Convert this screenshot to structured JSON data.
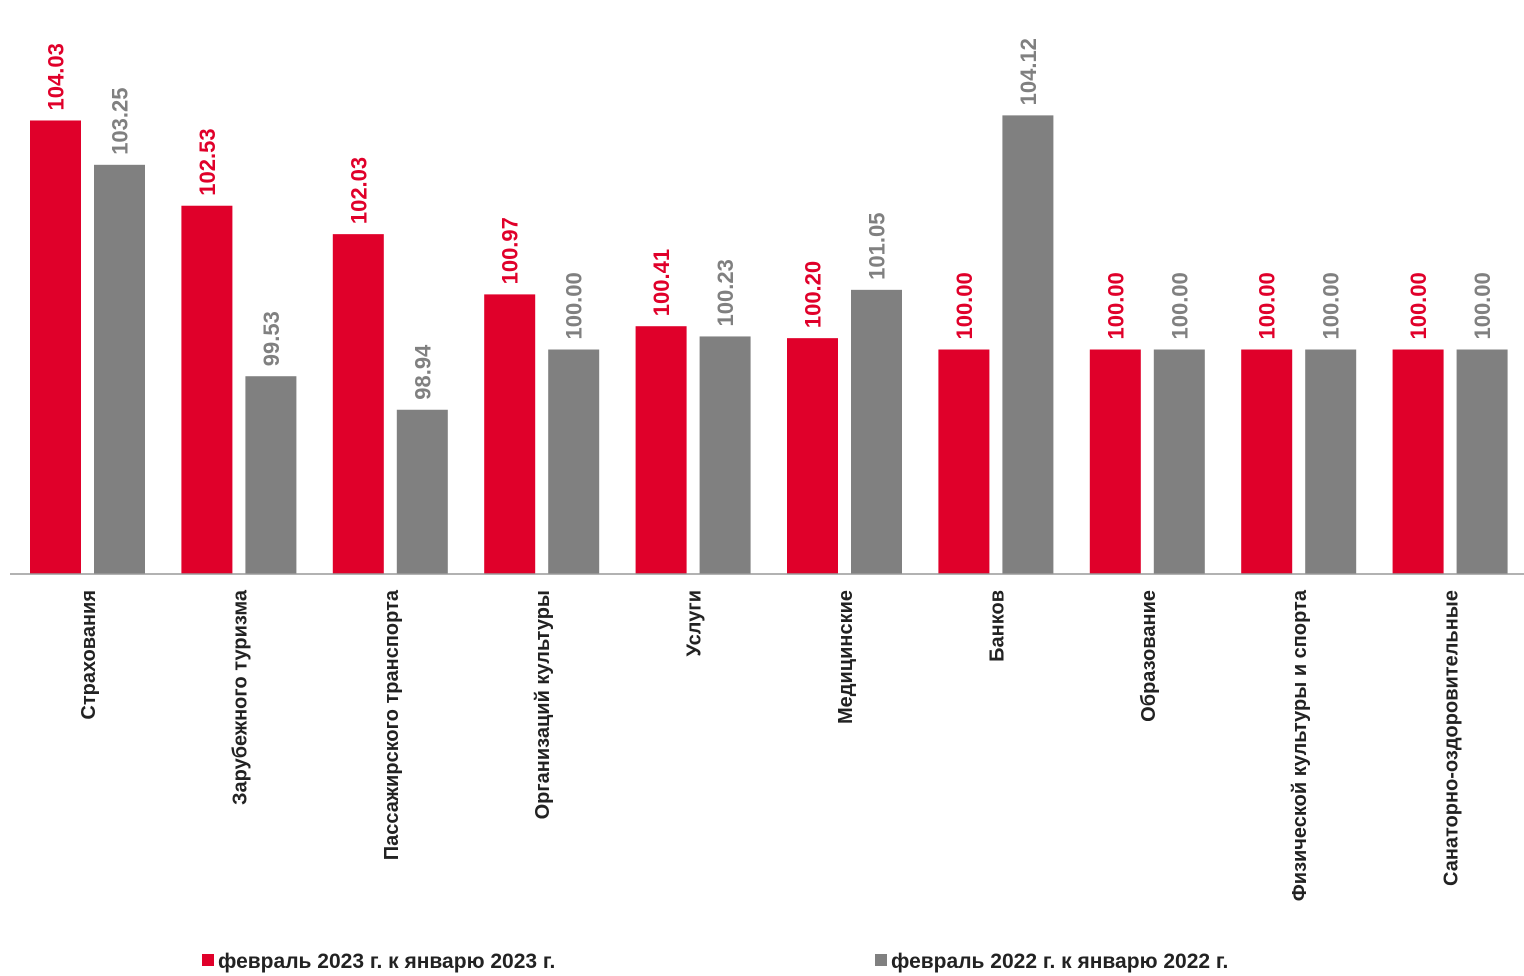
{
  "chart_data": {
    "type": "bar",
    "categories": [
      "Страхования",
      "Зарубежного туризма",
      "Пассажирского транспорта",
      "Организаций культуры",
      "Услуги",
      "Медицинские",
      "Банков",
      "Образование",
      "Физической культуры и спорта",
      "Санаторно-оздоровительные"
    ],
    "series": [
      {
        "name": "февраль 2023 г. к январю 2023 г.",
        "color": "#e0002a",
        "values": [
          104.03,
          102.53,
          102.03,
          100.97,
          100.41,
          100.2,
          100.0,
          100.0,
          100.0,
          100.0
        ],
        "value_labels": [
          "104.03",
          "102.53",
          "102.03",
          "100.97",
          "100.41",
          "100.20",
          "100.00",
          "100.00",
          "100.00",
          "100.00"
        ]
      },
      {
        "name": "февраль  2022 г. к  январю 2022 г.",
        "color": "#808080",
        "values": [
          103.25,
          99.53,
          98.94,
          100.0,
          100.23,
          101.05,
          104.12,
          100.0,
          100.0,
          100.0
        ],
        "value_labels": [
          "103.25",
          "99.53",
          "98.94",
          "100.00",
          "100.23",
          "101.05",
          "104.12",
          "100.00",
          "100.00",
          "100.00"
        ]
      }
    ],
    "ylim": [
      96.05,
      106.15
    ],
    "grid": false
  }
}
